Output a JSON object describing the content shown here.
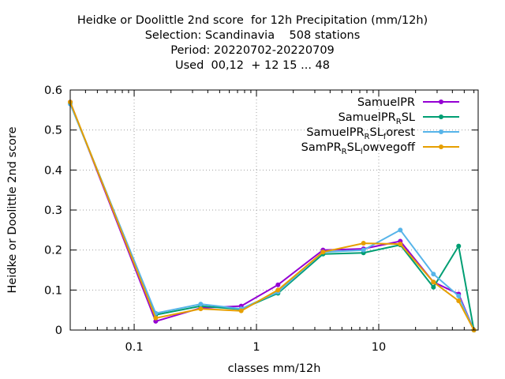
{
  "chart_data": {
    "type": "line",
    "title_lines": [
      "Heidke or Doolittle 2nd score  for 12h Precipitation (mm/12h)",
      "Selection: Scandinavia    508 stations",
      "Period: 20220702-20220709",
      "Used  00,12  + 12 15 ... 48"
    ],
    "xlabel": "classes mm/12h",
    "ylabel": "Heidke or Doolittle 2nd score",
    "x_scale": "log",
    "xlim": [
      0.03,
      65
    ],
    "ylim": [
      0,
      0.6
    ],
    "xticks": [
      {
        "value": 0.1,
        "label": "0.1"
      },
      {
        "value": 1,
        "label": "1"
      },
      {
        "value": 10,
        "label": "10"
      }
    ],
    "yticks": [
      {
        "value": 0,
        "label": "0"
      },
      {
        "value": 0.1,
        "label": "0.1"
      },
      {
        "value": 0.2,
        "label": "0.2"
      },
      {
        "value": 0.3,
        "label": "0.3"
      },
      {
        "value": 0.4,
        "label": "0.4"
      },
      {
        "value": 0.5,
        "label": "0.5"
      },
      {
        "value": 0.6,
        "label": "0.6"
      }
    ],
    "grid": true,
    "legend_position": "top-right",
    "x": [
      0.03,
      0.15,
      0.35,
      0.75,
      1.5,
      3.5,
      7.5,
      15,
      28,
      45,
      60
    ],
    "series": [
      {
        "name": "SamuelPR",
        "legend": [
          {
            "t": "SamuelPR",
            "sub": false
          }
        ],
        "color": "#9400d3",
        "values": [
          0.57,
          0.022,
          0.055,
          0.06,
          0.113,
          0.2,
          0.203,
          0.222,
          0.12,
          0.09,
          0.0
        ]
      },
      {
        "name": "SamuelPR_RSL",
        "legend": [
          {
            "t": "SamuelPR",
            "sub": false
          },
          {
            "t": "R",
            "sub": true
          },
          {
            "t": "SL",
            "sub": false
          }
        ],
        "color": "#009e73",
        "values": [
          0.568,
          0.038,
          0.06,
          0.052,
          0.092,
          0.19,
          0.193,
          0.213,
          0.107,
          0.21,
          0.0
        ]
      },
      {
        "name": "SamuelPR_RSL_forest",
        "legend": [
          {
            "t": "SamuelPR",
            "sub": false
          },
          {
            "t": "R",
            "sub": true
          },
          {
            "t": "SL",
            "sub": false
          },
          {
            "t": "f",
            "sub": true
          },
          {
            "t": "orest",
            "sub": false
          }
        ],
        "color": "#56b4e9",
        "values": [
          0.565,
          0.042,
          0.065,
          0.053,
          0.095,
          0.195,
          0.2,
          0.25,
          0.14,
          0.085,
          0.0
        ]
      },
      {
        "name": "SamPR_RSL_lowvegoff",
        "legend": [
          {
            "t": "SamPR",
            "sub": false
          },
          {
            "t": "R",
            "sub": true
          },
          {
            "t": "SL",
            "sub": false
          },
          {
            "t": "l",
            "sub": true
          },
          {
            "t": "owvegoff",
            "sub": false
          }
        ],
        "color": "#e69f00",
        "values": [
          0.57,
          0.03,
          0.053,
          0.048,
          0.1,
          0.195,
          0.217,
          0.215,
          0.12,
          0.073,
          0.0
        ]
      }
    ]
  }
}
